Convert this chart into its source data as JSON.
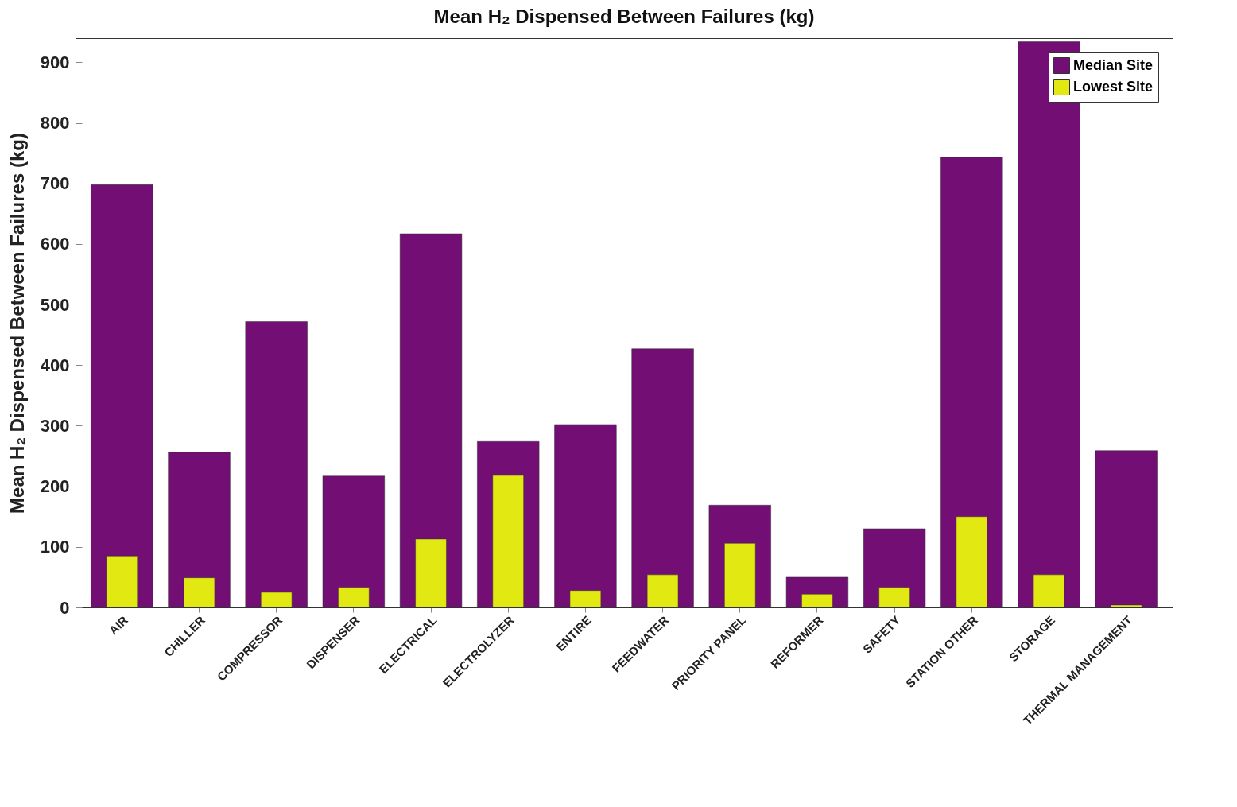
{
  "chart_data": {
    "type": "bar",
    "title": "Mean H₂ Dispensed Between Failures (kg)",
    "ylabel": "Mean H₂ Dispensed Between Failures (kg)",
    "categories": [
      "AIR",
      "CHILLER",
      "COMPRESSOR",
      "DISPENSER",
      "ELECTRICAL",
      "ELECTROLYZER",
      "ENTIRE",
      "FEEDWATER",
      "PRIORITY PANEL",
      "REFORMER",
      "SAFETY",
      "STATION OTHER",
      "STORAGE",
      "THERMAL MANAGEMENT"
    ],
    "series": [
      {
        "name": "Median Site",
        "color": "#720e74",
        "values": [
          698,
          256,
          472,
          217,
          617,
          274,
          302,
          427,
          169,
          50,
          130,
          743,
          934,
          259
        ]
      },
      {
        "name": "Lowest Site",
        "color": "#e2e812",
        "values": [
          85,
          49,
          25,
          33,
          113,
          218,
          28,
          54,
          106,
          22,
          33,
          150,
          54,
          4
        ]
      }
    ],
    "ylim": [
      0,
      940
    ],
    "yticks": [
      0,
      100,
      200,
      300,
      400,
      500,
      600,
      700,
      800,
      900
    ],
    "grid": false,
    "legend": "top right"
  }
}
